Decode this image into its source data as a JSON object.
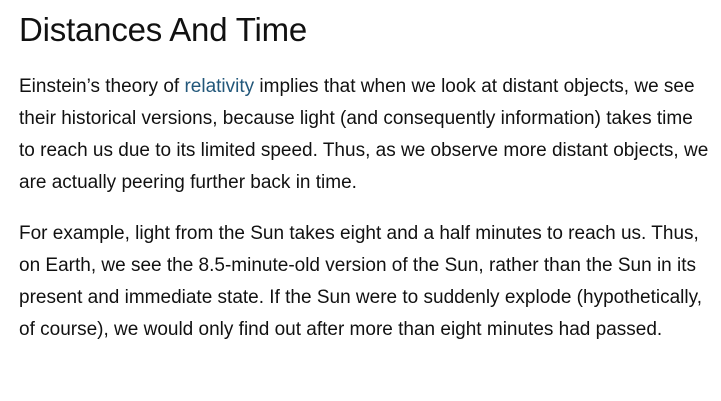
{
  "article": {
    "heading": "Distances And Time",
    "paragraph1": {
      "before_link": "Einstein’s theory of ",
      "link_text": "relativity",
      "after_link": " implies that when we look at distant objects, we see their historical versions, because light (and consequently information) takes time to reach us due to its limited speed. Thus, as we observe more distant objects, we are actually peering further back in time."
    },
    "paragraph2": "For example, light from the Sun takes eight and a half minutes to reach us. Thus, on Earth, we see the 8.5-minute-old version of the Sun, rather than the Sun in its present and immediate state. If the Sun were to suddenly explode (hypothetically, of course), we would only find out after more than eight minutes had passed."
  },
  "colors": {
    "text": "#111111",
    "link": "#22577a",
    "background": "#ffffff"
  }
}
